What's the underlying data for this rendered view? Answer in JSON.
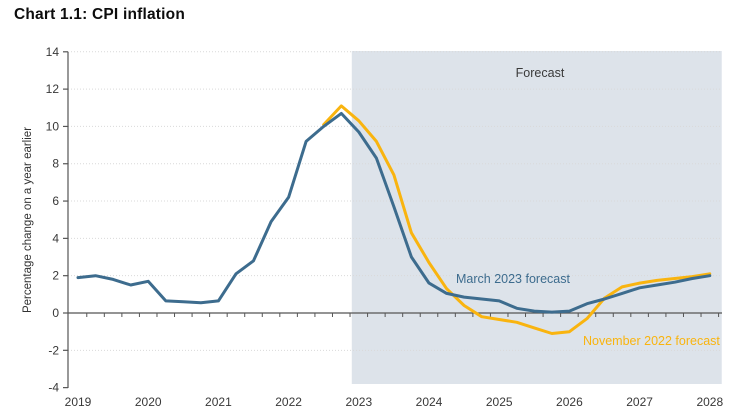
{
  "title": "Chart 1.1: CPI inflation",
  "chart_data": {
    "type": "line",
    "title": "Chart 1.1: CPI inflation",
    "xlabel": "",
    "ylabel": "Percentage change on a year earlier",
    "ylim": [
      -4,
      14
    ],
    "grid": "horizontal-dotted",
    "x_ticks": [
      2019,
      2020,
      2021,
      2022,
      2023,
      2024,
      2025,
      2026,
      2027,
      2028
    ],
    "y_ticks": [
      14,
      12,
      10,
      8,
      6,
      4,
      2,
      0,
      -2,
      -4
    ],
    "forecast_region": {
      "label": "Forecast",
      "start": 2022.9,
      "end": 2028.17,
      "fill": "#dde3ea"
    },
    "series": [
      {
        "name": "November 2022 forecast",
        "color": "#f9b40f",
        "x_start": 2022.5,
        "x_step": 0.25,
        "values": [
          10.1,
          11.1,
          10.3,
          9.2,
          7.4,
          4.3,
          2.7,
          1.3,
          0.4,
          -0.2,
          -0.35,
          -0.5,
          -0.8,
          -1.1,
          -1.0,
          -0.3,
          0.8,
          1.4,
          1.6,
          1.75,
          1.85,
          1.95,
          2.1
        ]
      },
      {
        "name": "March 2023 forecast",
        "color": "#3d6c8e",
        "x_start": 2019.0,
        "x_step": 0.25,
        "values": [
          1.9,
          2.0,
          1.8,
          1.5,
          1.7,
          0.65,
          0.6,
          0.55,
          0.65,
          2.1,
          2.8,
          4.9,
          6.2,
          9.2,
          10.0,
          10.7,
          9.7,
          8.3,
          5.7,
          3.0,
          1.6,
          1.05,
          0.85,
          0.75,
          0.65,
          0.25,
          0.1,
          0.05,
          0.1,
          0.5,
          0.75,
          1.05,
          1.35,
          1.5,
          1.65,
          1.85,
          2.0
        ]
      }
    ]
  }
}
